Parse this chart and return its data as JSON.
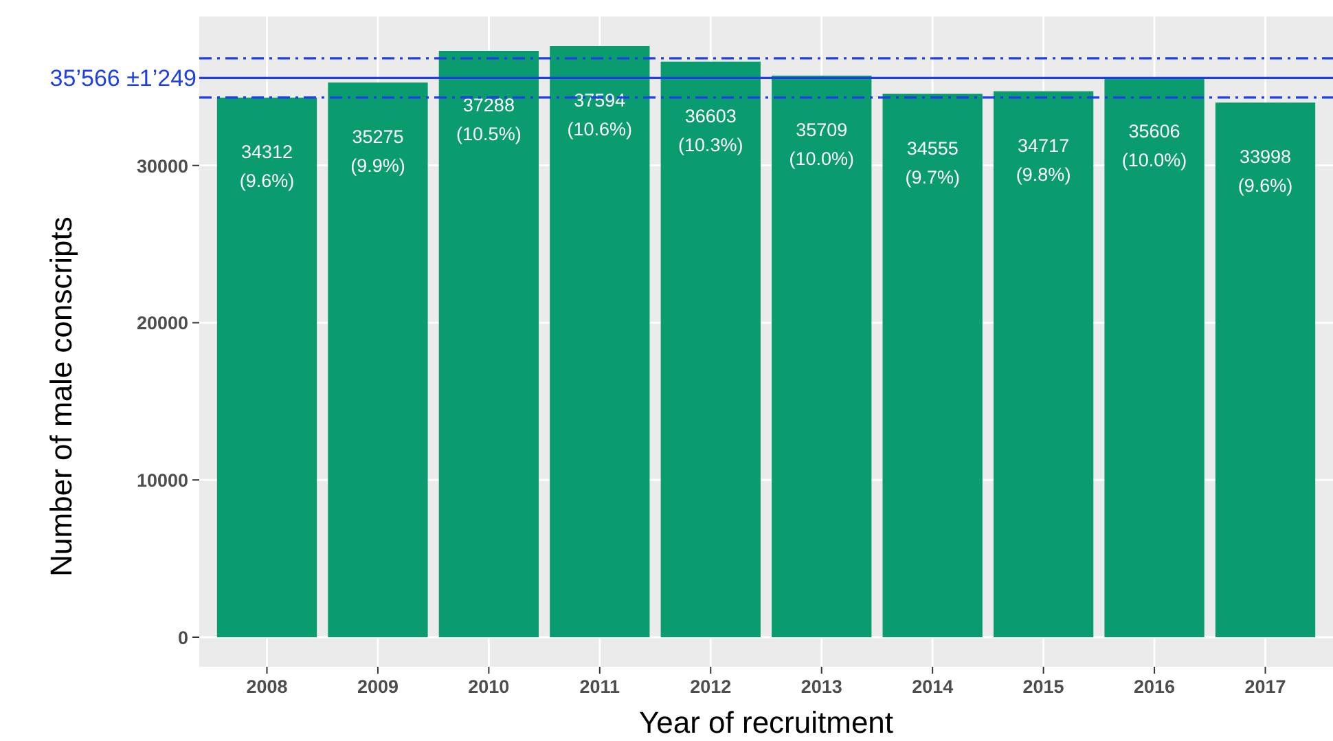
{
  "chart_data": {
    "type": "bar",
    "xlabel": "Year of recruitment",
    "ylabel": "Number of male conscripts",
    "categories": [
      "2008",
      "2009",
      "2010",
      "2011",
      "2012",
      "2013",
      "2014",
      "2015",
      "2016",
      "2017"
    ],
    "values": [
      34312,
      35275,
      37288,
      37594,
      36603,
      35709,
      34555,
      34717,
      35606,
      33998
    ],
    "value_labels": [
      "34312 (9.6%)",
      "35275 (9.9%)",
      "37288 (10.5%)",
      "37594 (10.6%)",
      "36603 (10.3%)",
      "35709 (10.0%)",
      "34555 (9.7%)",
      "34717 (9.8%)",
      "35606 (10.0%)",
      "33998 (9.6%)"
    ],
    "color": "#0a9b6e",
    "ylim": [
      -1880,
      39474
    ],
    "yticks": [
      0,
      10000,
      20000,
      30000
    ],
    "grid": true,
    "ref_lines": [
      {
        "axis": "y",
        "value": 35566,
        "label": "35’566 ±1’249",
        "color": "#1f3fe6",
        "line_style": "solid"
      },
      {
        "axis": "y",
        "value": 36815,
        "label": null,
        "color": "#1f3fe6",
        "line_style": "dashdot"
      },
      {
        "axis": "y",
        "value": 34317,
        "label": null,
        "color": "#1f3fe6",
        "line_style": "dashdot"
      }
    ]
  }
}
